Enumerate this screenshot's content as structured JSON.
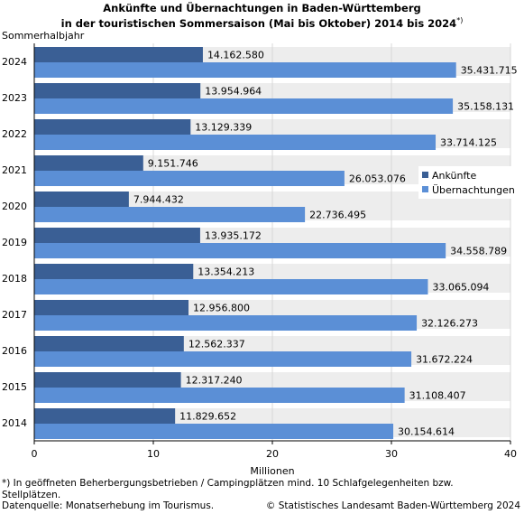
{
  "title": {
    "line1": "Ankünfte und Übernachtungen in Baden-Württemberg",
    "line2": "in der touristischen Sommersaison (Mai bis Oktober) 2014 bis 2024",
    "note_mark": "*)"
  },
  "footer": {
    "footnote_line1": "*) In geöffneten Beherbergungsbetrieben / Campingplätzen  mind. 10 Schlafgelegenheiten bzw.",
    "footnote_line2": "Stellplätzen.",
    "source": "Datenquelle: Monatserhebung im Tourismus.",
    "copyright": "© Statistisches Landesamt Baden-Württemberg 2024"
  },
  "chart_data": {
    "type": "bar",
    "orientation": "horizontal",
    "y_axis_label": "Sommerhalbjahr",
    "xlabel": "Millionen",
    "xlim": [
      0,
      40
    ],
    "xticks": [
      "0",
      "10",
      "20",
      "30",
      "40"
    ],
    "legend_position": "right",
    "categories": [
      "2024",
      "2023",
      "2022",
      "2021",
      "2020",
      "2019",
      "2018",
      "2017",
      "2016",
      "2015",
      "2014"
    ],
    "series": [
      {
        "name": "Ankünfte",
        "color": "#3a5f95",
        "values": [
          14162580,
          13954964,
          13129339,
          9151746,
          7944432,
          13935172,
          13354213,
          12956800,
          12562337,
          12317240,
          11829652
        ],
        "labels": [
          "14.162.580",
          "13.954.964",
          "13.129.339",
          "9.151.746",
          "7.944.432",
          "13.935.172",
          "13.354.213",
          "12.956.800",
          "12.562.337",
          "12.317.240",
          "11.829.652"
        ]
      },
      {
        "name": "Übernachtungen",
        "color": "#5b8fd6",
        "values": [
          35431715,
          35158131,
          33714125,
          26053076,
          22736495,
          34558789,
          33065094,
          32126273,
          31672224,
          31108407,
          30154614
        ],
        "labels": [
          "35.431.715",
          "35.158.131",
          "33.714.125",
          "26.053.076",
          "22.736.495",
          "34.558.789",
          "33.065.094",
          "32.126.273",
          "31.672.224",
          "31.108.407",
          "30.154.614"
        ]
      }
    ],
    "colors": {
      "band": "#ededed",
      "grid": "#d8d8d8",
      "axis": "#000000"
    }
  }
}
